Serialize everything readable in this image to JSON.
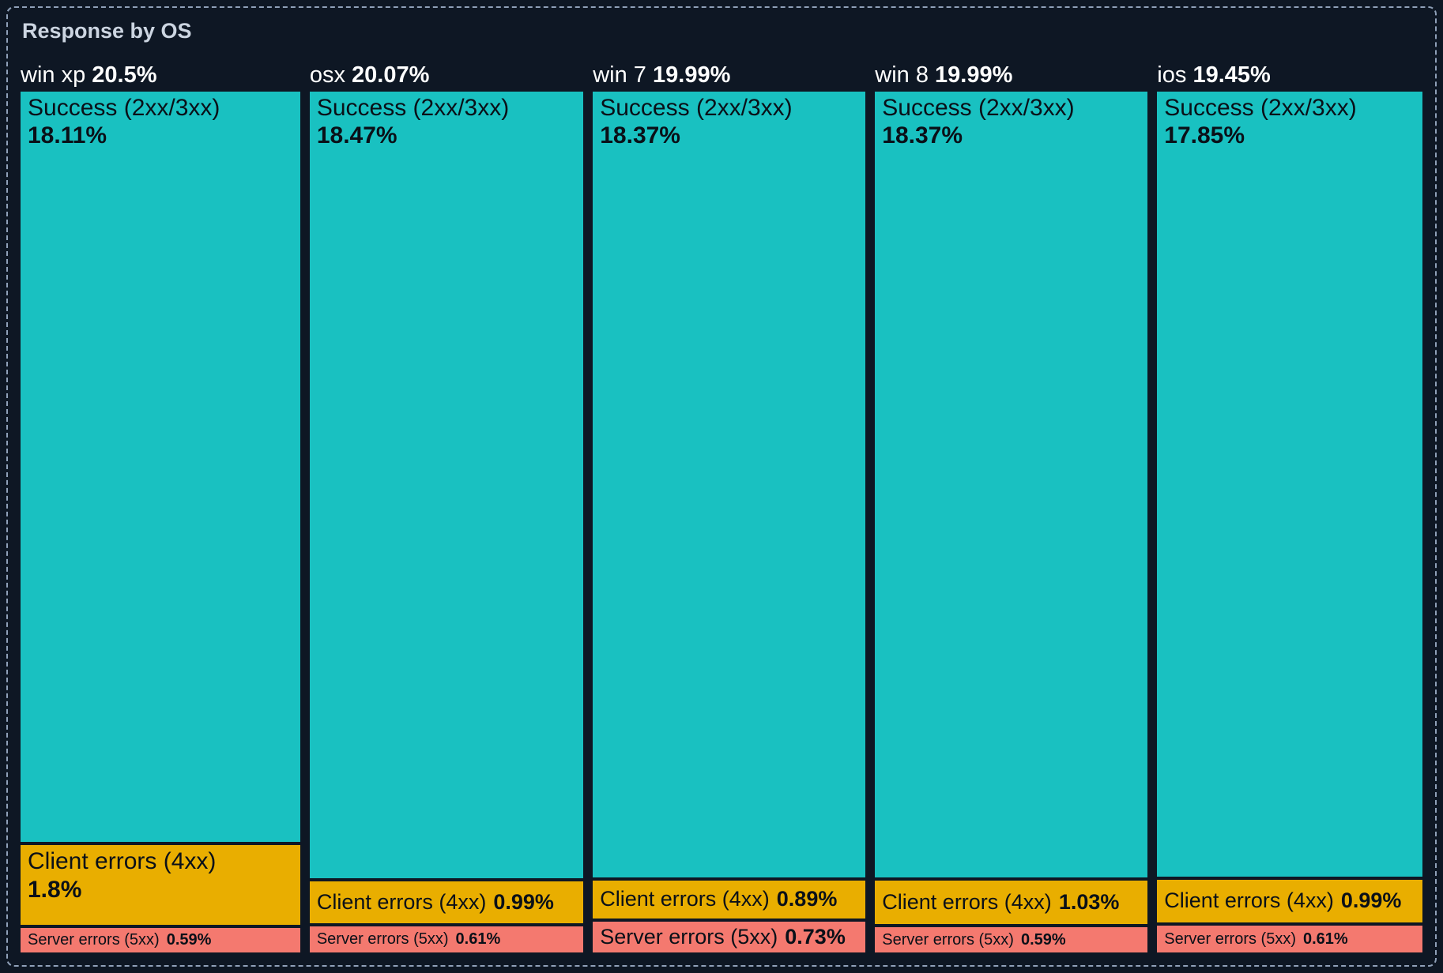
{
  "panel": {
    "title": "Response by OS"
  },
  "colors": {
    "background": "#0e1724",
    "panel_border": "#8fa0b8",
    "title_text": "#ccd5e1",
    "header_text": "#ffffff",
    "segment_text": "#0a1018",
    "success": "#19c1c1",
    "client": "#e9ae00",
    "server": "#f4796f"
  },
  "chart_data": {
    "type": "treemap",
    "title": "Response by OS",
    "orientation": "columns-proportional-width, segments-proportional-height",
    "series_labels": [
      "Success (2xx/3xx)",
      "Client errors (4xx)",
      "Server errors (5xx)"
    ],
    "groups": [
      {
        "name": "win xp",
        "value": 20.5,
        "value_label": "20.5%",
        "segments": [
          {
            "key": "success",
            "name": "Success (2xx/3xx)",
            "value": 18.11,
            "value_label": "18.11%"
          },
          {
            "key": "client",
            "name": "Client errors (4xx)",
            "value": 1.8,
            "value_label": "1.8%"
          },
          {
            "key": "server",
            "name": "Server errors (5xx)",
            "value": 0.59,
            "value_label": "0.59%"
          }
        ]
      },
      {
        "name": "osx",
        "value": 20.07,
        "value_label": "20.07%",
        "segments": [
          {
            "key": "success",
            "name": "Success (2xx/3xx)",
            "value": 18.47,
            "value_label": "18.47%"
          },
          {
            "key": "client",
            "name": "Client errors (4xx)",
            "value": 0.99,
            "value_label": "0.99%"
          },
          {
            "key": "server",
            "name": "Server errors (5xx)",
            "value": 0.61,
            "value_label": "0.61%"
          }
        ]
      },
      {
        "name": "win 7",
        "value": 19.99,
        "value_label": "19.99%",
        "segments": [
          {
            "key": "success",
            "name": "Success (2xx/3xx)",
            "value": 18.37,
            "value_label": "18.37%"
          },
          {
            "key": "client",
            "name": "Client errors (4xx)",
            "value": 0.89,
            "value_label": "0.89%"
          },
          {
            "key": "server",
            "name": "Server errors (5xx)",
            "value": 0.73,
            "value_label": "0.73%"
          }
        ]
      },
      {
        "name": "win 8",
        "value": 19.99,
        "value_label": "19.99%",
        "segments": [
          {
            "key": "success",
            "name": "Success (2xx/3xx)",
            "value": 18.37,
            "value_label": "18.37%"
          },
          {
            "key": "client",
            "name": "Client errors (4xx)",
            "value": 1.03,
            "value_label": "1.03%"
          },
          {
            "key": "server",
            "name": "Server errors (5xx)",
            "value": 0.59,
            "value_label": "0.59%"
          }
        ]
      },
      {
        "name": "ios",
        "value": 19.45,
        "value_label": "19.45%",
        "segments": [
          {
            "key": "success",
            "name": "Success (2xx/3xx)",
            "value": 17.85,
            "value_label": "17.85%"
          },
          {
            "key": "client",
            "name": "Client errors (4xx)",
            "value": 0.99,
            "value_label": "0.99%"
          },
          {
            "key": "server",
            "name": "Server errors (5xx)",
            "value": 0.61,
            "value_label": "0.61%"
          }
        ]
      }
    ]
  }
}
